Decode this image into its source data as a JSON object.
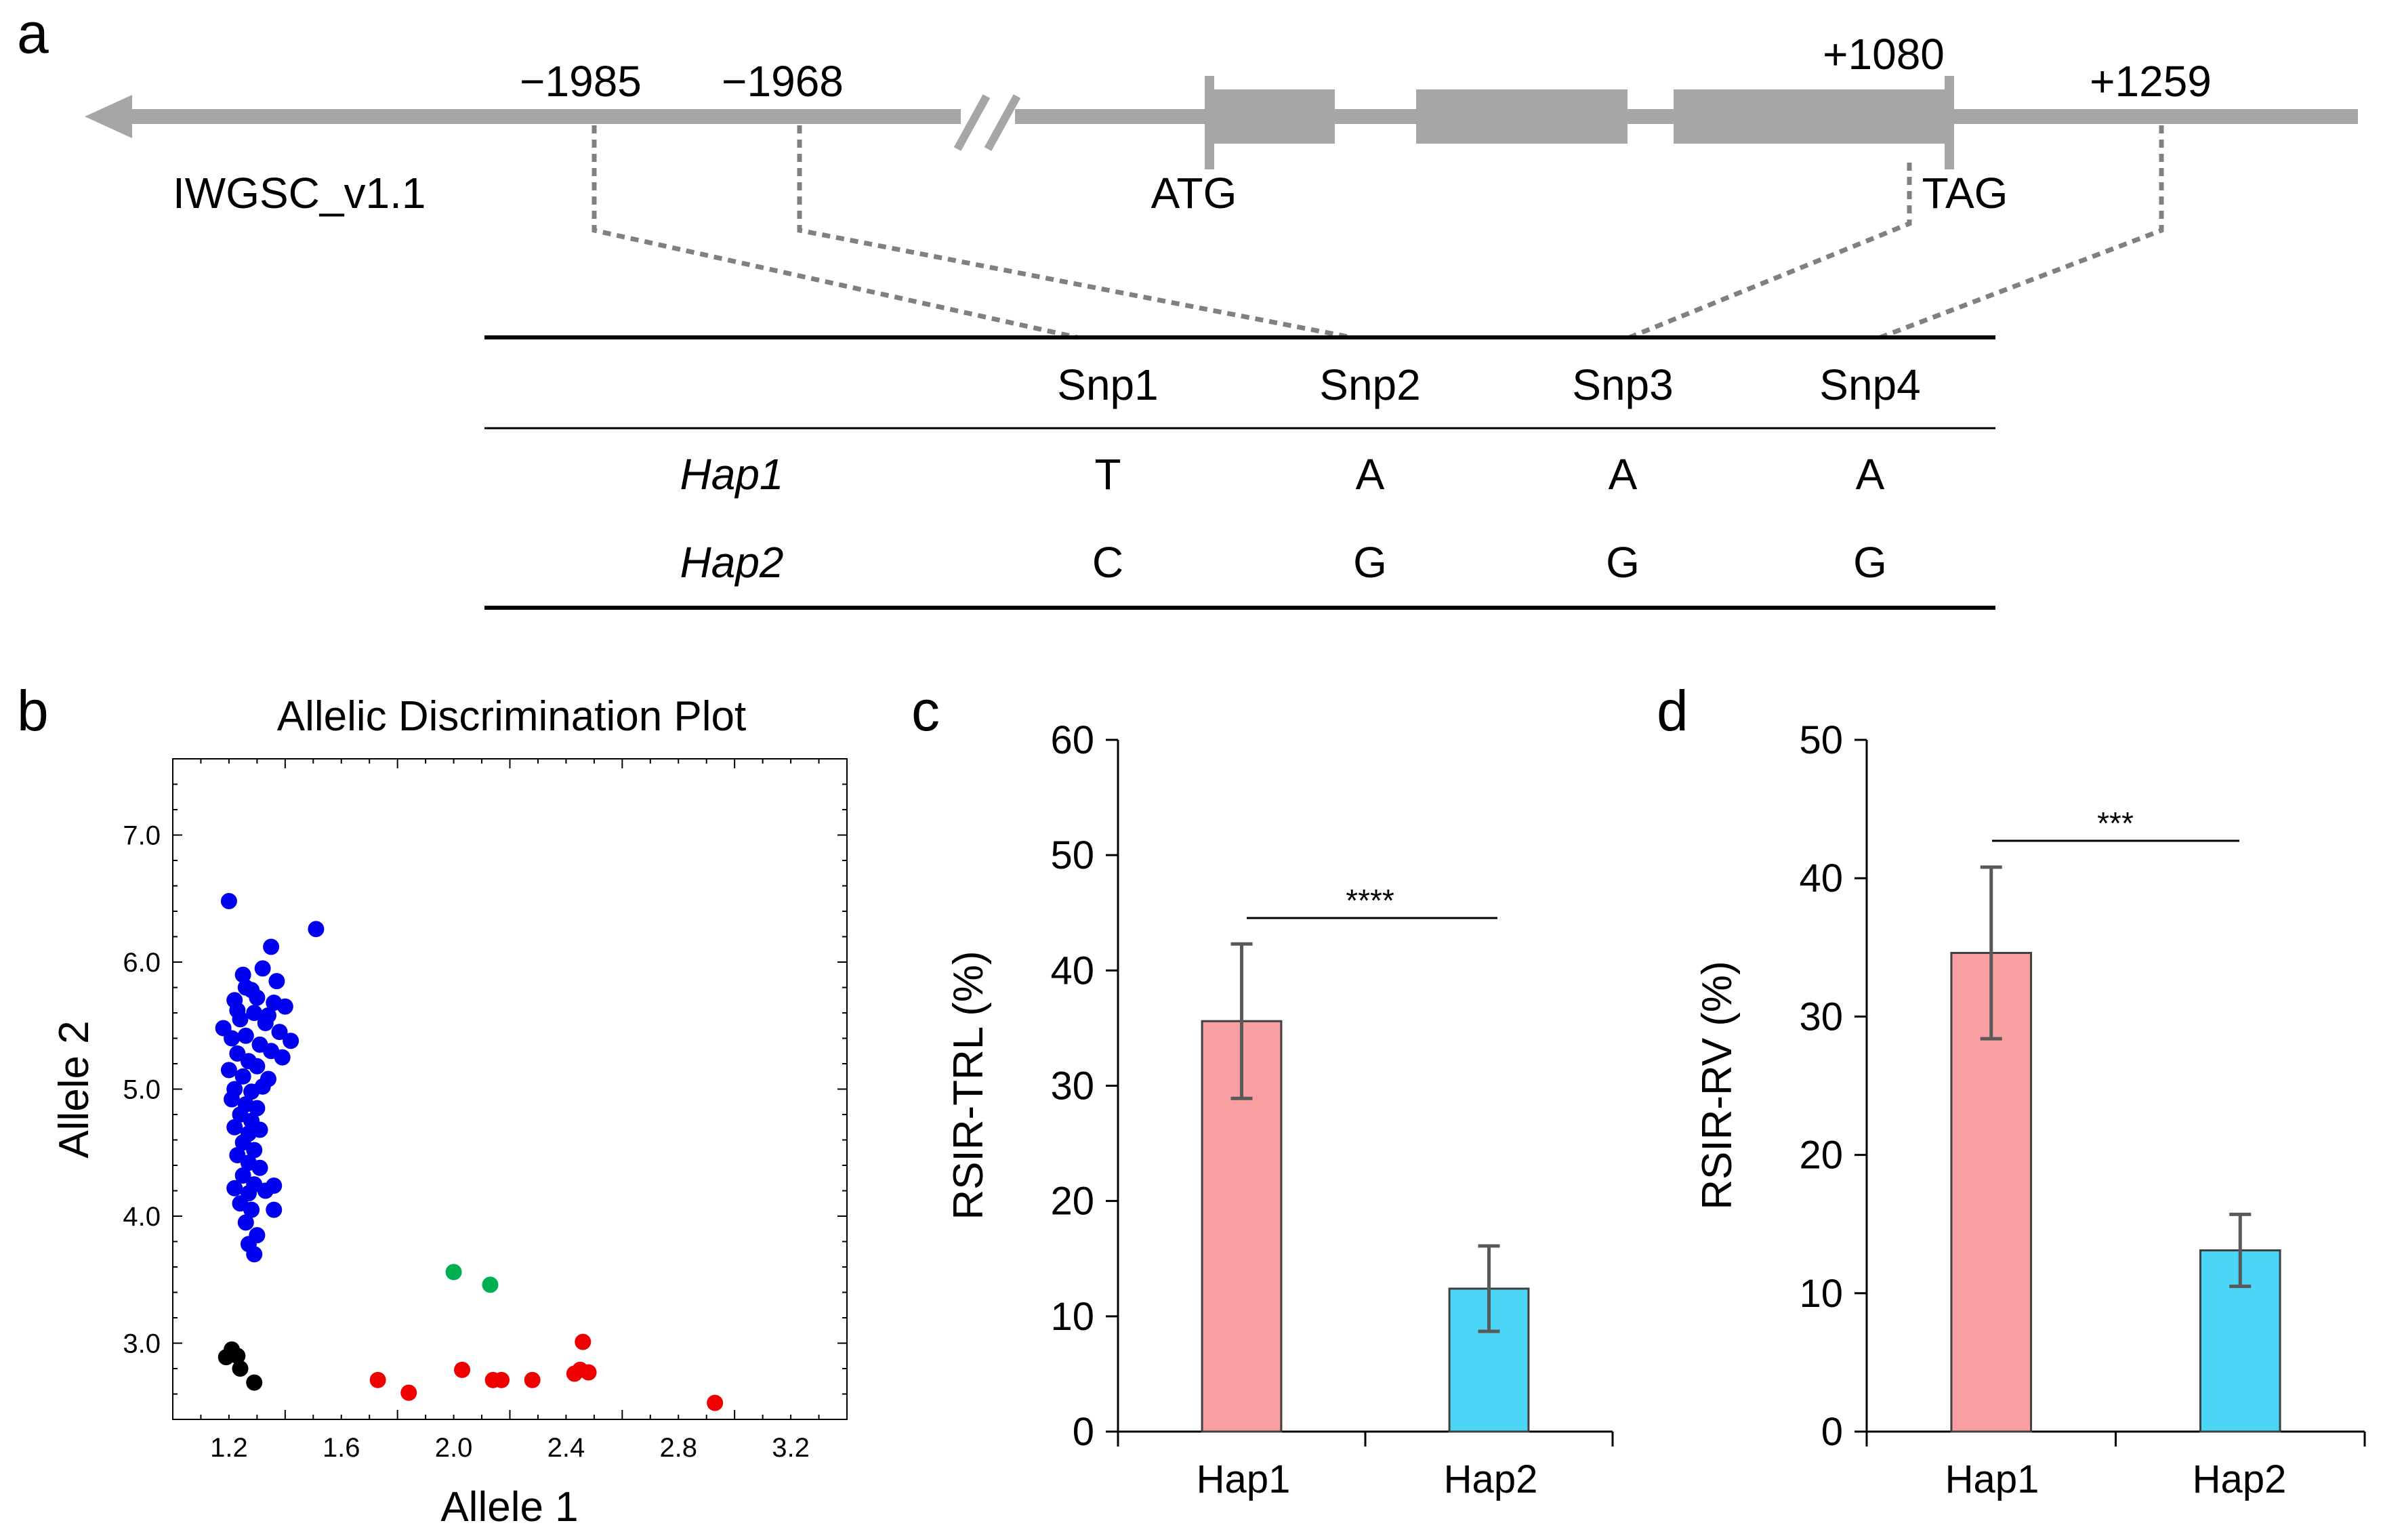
{
  "panels": {
    "a": "a",
    "b": "b",
    "c": "c",
    "d": "d"
  },
  "gene_model": {
    "reference_label": "IWGSC_v1.1",
    "positions": {
      "p1": "−1985",
      "p2": "−1968",
      "p3": "+1080",
      "p4": "+1259"
    },
    "start_codon": "ATG",
    "stop_codon": "TAG"
  },
  "haplotype_table": {
    "columns": [
      "Snp1",
      "Snp2",
      "Snp3",
      "Snp4"
    ],
    "rows": [
      {
        "name": "Hap1",
        "alleles": [
          "T",
          "A",
          "A",
          "A"
        ]
      },
      {
        "name": "Hap2",
        "alleles": [
          "C",
          "G",
          "G",
          "G"
        ]
      }
    ]
  },
  "chart_data": [
    {
      "panel": "b",
      "type": "scatter",
      "title": "Allelic Discrimination Plot",
      "xlabel": "Allele 1",
      "ylabel": "Allele 2",
      "xlim": [
        1.0,
        3.4
      ],
      "ylim": [
        2.4,
        7.6
      ],
      "xticks": [
        "1.2",
        "1.6",
        "2.0",
        "2.4",
        "2.8",
        "3.2"
      ],
      "yticks": [
        "3.0",
        "4.0",
        "5.0",
        "6.0",
        "7.0"
      ],
      "colors": {
        "blue": "#0000ee",
        "green": "#00b050",
        "red": "#ee0000",
        "black": "#000000"
      },
      "series": [
        {
          "name": "blue",
          "points": [
            [
              1.2,
              6.48
            ],
            [
              1.51,
              6.26
            ],
            [
              1.35,
              6.12
            ],
            [
              1.25,
              5.9
            ],
            [
              1.32,
              5.95
            ],
            [
              1.37,
              5.85
            ],
            [
              1.28,
              5.78
            ],
            [
              1.22,
              5.7
            ],
            [
              1.3,
              5.72
            ],
            [
              1.36,
              5.68
            ],
            [
              1.4,
              5.65
            ],
            [
              1.18,
              5.48
            ],
            [
              1.24,
              5.55
            ],
            [
              1.29,
              5.6
            ],
            [
              1.33,
              5.52
            ],
            [
              1.38,
              5.45
            ],
            [
              1.42,
              5.38
            ],
            [
              1.21,
              5.4
            ],
            [
              1.26,
              5.42
            ],
            [
              1.31,
              5.35
            ],
            [
              1.35,
              5.3
            ],
            [
              1.39,
              5.25
            ],
            [
              1.23,
              5.28
            ],
            [
              1.27,
              5.22
            ],
            [
              1.2,
              5.15
            ],
            [
              1.25,
              5.1
            ],
            [
              1.3,
              5.18
            ],
            [
              1.34,
              5.08
            ],
            [
              1.22,
              5.0
            ],
            [
              1.28,
              4.98
            ],
            [
              1.32,
              5.02
            ],
            [
              1.21,
              4.92
            ],
            [
              1.26,
              4.88
            ],
            [
              1.3,
              4.85
            ],
            [
              1.24,
              4.8
            ],
            [
              1.28,
              4.75
            ],
            [
              1.22,
              4.7
            ],
            [
              1.27,
              4.65
            ],
            [
              1.31,
              4.68
            ],
            [
              1.25,
              4.58
            ],
            [
              1.29,
              4.52
            ],
            [
              1.23,
              4.48
            ],
            [
              1.27,
              4.42
            ],
            [
              1.31,
              4.38
            ],
            [
              1.25,
              4.32
            ],
            [
              1.29,
              4.25
            ],
            [
              1.22,
              4.22
            ],
            [
              1.27,
              4.18
            ],
            [
              1.33,
              4.2
            ],
            [
              1.36,
              4.24
            ],
            [
              1.24,
              4.1
            ],
            [
              1.28,
              4.05
            ],
            [
              1.26,
              3.95
            ],
            [
              1.3,
              3.85
            ],
            [
              1.27,
              3.78
            ],
            [
              1.29,
              3.7
            ],
            [
              1.26,
              5.8
            ],
            [
              1.34,
              5.58
            ],
            [
              1.23,
              5.62
            ],
            [
              1.36,
              4.05
            ]
          ]
        },
        {
          "name": "green",
          "points": [
            [
              2.0,
              3.56
            ],
            [
              2.13,
              3.46
            ]
          ]
        },
        {
          "name": "red",
          "points": [
            [
              1.73,
              2.71
            ],
            [
              1.84,
              2.61
            ],
            [
              2.03,
              2.79
            ],
            [
              2.14,
              2.71
            ],
            [
              2.17,
              2.71
            ],
            [
              2.28,
              2.71
            ],
            [
              2.43,
              2.76
            ],
            [
              2.45,
              2.79
            ],
            [
              2.48,
              2.77
            ],
            [
              2.46,
              3.01
            ],
            [
              2.93,
              2.53
            ]
          ]
        },
        {
          "name": "black",
          "points": [
            [
              1.19,
              2.89
            ],
            [
              1.21,
              2.95
            ],
            [
              1.23,
              2.9
            ],
            [
              1.24,
              2.8
            ],
            [
              1.29,
              2.69
            ]
          ]
        }
      ]
    },
    {
      "panel": "c",
      "type": "bar",
      "ylabel": "RSIR-TRL (%)",
      "categories": [
        "Hap1",
        "Hap2"
      ],
      "values": [
        35.6,
        12.4
      ],
      "errors": [
        6.7,
        3.7
      ],
      "ylim": [
        0,
        60
      ],
      "yticks": [
        "0",
        "10",
        "20",
        "30",
        "40",
        "50",
        "60"
      ],
      "significance": "****",
      "colors": [
        "#fa9fa1",
        "#4bd6f8"
      ]
    },
    {
      "panel": "d",
      "type": "bar",
      "ylabel": "RSIR-RV (%)",
      "categories": [
        "Hap1",
        "Hap2"
      ],
      "values": [
        34.6,
        13.1
      ],
      "errors": [
        6.2,
        2.6
      ],
      "ylim": [
        0,
        50
      ],
      "yticks": [
        "0",
        "10",
        "20",
        "30",
        "40",
        "50"
      ],
      "significance": "***",
      "colors": [
        "#fa9fa1",
        "#4bd6f8"
      ]
    }
  ]
}
